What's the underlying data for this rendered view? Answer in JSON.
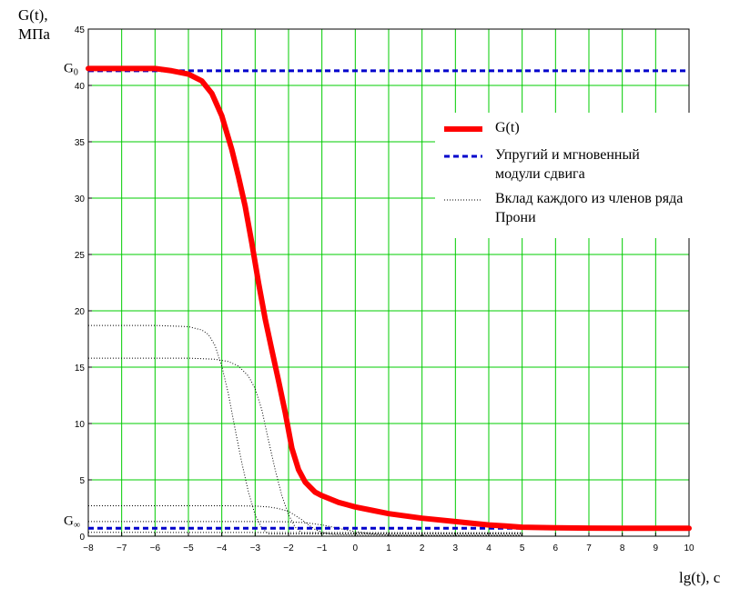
{
  "chart_data": {
    "type": "line",
    "ylabel": [
      "G(t),",
      "МПа"
    ],
    "xlabel": "lg(t), c",
    "xlim": [
      -8,
      10
    ],
    "ylim": [
      0,
      45
    ],
    "xticks": [
      -8,
      -7,
      -6,
      -5,
      -4,
      -3,
      -2,
      -1,
      0,
      1,
      2,
      3,
      4,
      5,
      6,
      7,
      8,
      9,
      10
    ],
    "yticks": [
      0,
      5,
      10,
      15,
      20,
      25,
      30,
      35,
      40,
      45
    ],
    "grid": true,
    "legend_position": "top-right",
    "annotations": [
      {
        "text": "G",
        "subscript": "0",
        "y": 41.0
      },
      {
        "text": "G",
        "subscript": "∞",
        "y": 0.7
      }
    ],
    "series": [
      {
        "name": "G(t)",
        "style": "solid-thick",
        "color": "#ff0000",
        "x": [
          -8,
          -7,
          -6,
          -5.5,
          -5,
          -4.6,
          -4.3,
          -4.0,
          -3.7,
          -3.5,
          -3.3,
          -3.1,
          -2.9,
          -2.7,
          -2.5,
          -2.3,
          -2.1,
          -1.9,
          -1.7,
          -1.5,
          -1.2,
          -1.0,
          -0.5,
          0,
          0.5,
          1,
          1.5,
          2,
          3,
          4,
          4.5,
          5,
          6,
          7,
          8,
          9,
          10
        ],
        "y": [
          41.5,
          41.5,
          41.5,
          41.3,
          41.0,
          40.4,
          39.3,
          37.3,
          34.3,
          31.9,
          29.3,
          26.0,
          22.5,
          19.3,
          16.5,
          13.8,
          11.0,
          7.8,
          5.9,
          4.8,
          3.9,
          3.6,
          3.0,
          2.6,
          2.3,
          2.0,
          1.8,
          1.6,
          1.3,
          1.0,
          0.9,
          0.8,
          0.75,
          0.72,
          0.7,
          0.7,
          0.7
        ]
      },
      {
        "name": "Упругий и мгновенный модули сдвига",
        "style": "dashed",
        "color": "#0000cc",
        "x": [
          -8,
          10
        ],
        "y": [
          41.3,
          41.3
        ]
      },
      {
        "name": "",
        "style": "dashed",
        "color": "#0000cc",
        "x": [
          -8,
          10
        ],
        "y": [
          0.7,
          0.7
        ]
      },
      {
        "name": "Вклад каждого из членов ряда Прони",
        "style": "dotted",
        "color": "#000000",
        "x": [
          -8,
          -6,
          -5,
          -4.6,
          -4.4,
          -4.2,
          -4.0,
          -3.8,
          -3.6,
          -3.4,
          -3.2,
          -3.0,
          -2.8,
          -2.6,
          0,
          5
        ],
        "y": [
          18.7,
          18.7,
          18.6,
          18.3,
          17.9,
          16.9,
          15.1,
          12.6,
          9.5,
          6.5,
          3.9,
          1.9,
          0.7,
          0.2,
          0.2,
          0.2
        ]
      },
      {
        "name": "",
        "style": "dotted",
        "color": "#000000",
        "x": [
          -8,
          -5,
          -4.2,
          -3.8,
          -3.5,
          -3.2,
          -3.0,
          -2.8,
          -2.6,
          -2.4,
          -2.2,
          -2.0,
          -1.8,
          -1.6,
          0,
          5
        ],
        "y": [
          15.8,
          15.8,
          15.7,
          15.5,
          15.1,
          14.2,
          13.1,
          11.2,
          8.5,
          5.9,
          3.6,
          1.9,
          0.8,
          0.3,
          0.3,
          0.3
        ]
      },
      {
        "name": "",
        "style": "dotted",
        "color": "#000000",
        "x": [
          -8,
          -4,
          -3,
          -2.6,
          -2.3,
          -2.0,
          -1.8,
          -1.6,
          -1.4,
          -1.2,
          -1.0,
          -0.7,
          0,
          5
        ],
        "y": [
          2.7,
          2.7,
          2.68,
          2.6,
          2.45,
          2.2,
          1.85,
          1.45,
          1.0,
          0.6,
          0.35,
          0.15,
          0.1,
          0.1
        ]
      },
      {
        "name": "",
        "style": "dotted",
        "color": "#000000",
        "x": [
          -8,
          -3,
          -2,
          -1.5,
          -1.0,
          -0.5,
          0,
          0.5,
          1.0,
          2,
          5
        ],
        "y": [
          1.3,
          1.3,
          1.28,
          1.2,
          1.0,
          0.7,
          0.4,
          0.2,
          0.1,
          0.05,
          0.05
        ]
      },
      {
        "name": "",
        "style": "dotted",
        "color": "#000000",
        "x": [
          -8,
          5
        ],
        "y": [
          0.35,
          0.3
        ]
      }
    ]
  }
}
